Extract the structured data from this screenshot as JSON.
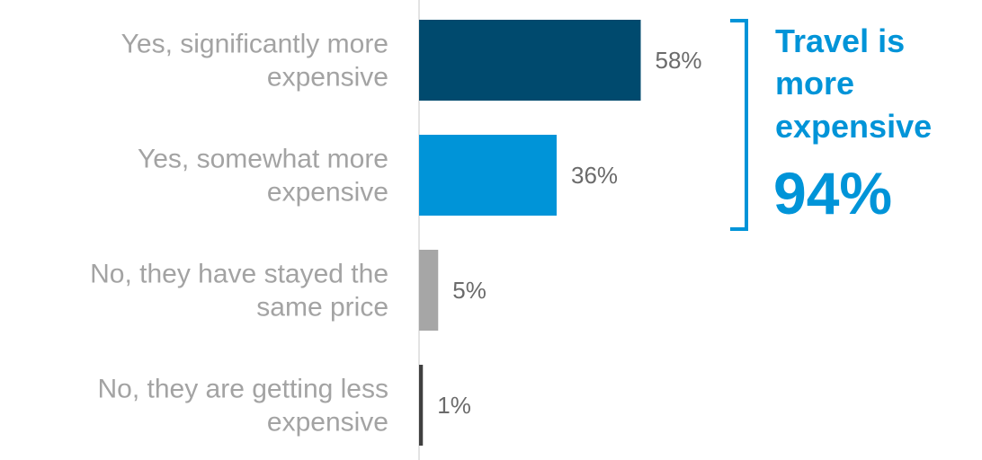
{
  "chart_data": {
    "type": "bar",
    "orientation": "horizontal",
    "categories": [
      [
        "Yes, significantly more",
        "expensive"
      ],
      [
        "Yes, somewhat more",
        "expensive"
      ],
      [
        "No, they have stayed the",
        "same price"
      ],
      [
        "No, they are getting less",
        "expensive"
      ]
    ],
    "values": [
      58,
      36,
      5,
      1
    ],
    "value_labels": [
      "58%",
      "36%",
      "5%",
      "1%"
    ],
    "colors": [
      "#004a6e",
      "#0094d8",
      "#a6a6a6",
      "#404040"
    ],
    "xlim": [
      0,
      100
    ],
    "grid": false,
    "title": "",
    "xlabel": "",
    "ylabel": ""
  },
  "callout": {
    "lines": [
      "Travel is",
      "more",
      "expensive"
    ],
    "value": "94%",
    "color": "#0094d8"
  }
}
